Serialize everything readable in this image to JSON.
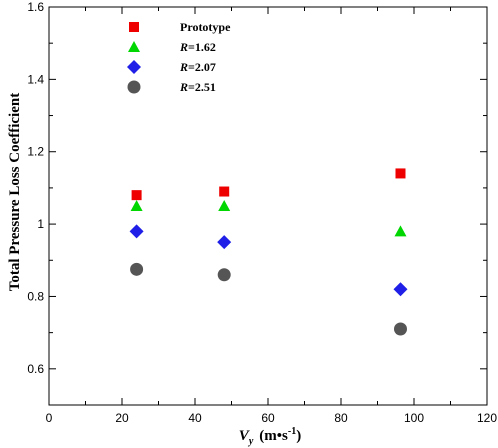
{
  "chart_data": {
    "type": "scatter",
    "title": "",
    "xlabel": {
      "symbol": "V",
      "subscript": "y",
      "units": "(m•s",
      "units_exp": "-1",
      "units_close": ")"
    },
    "ylabel": "Total Pressure Loss Coefficient",
    "xlim": [
      0,
      120
    ],
    "ylim": [
      0.5,
      1.6
    ],
    "xticks": [
      0,
      20,
      40,
      60,
      80,
      100,
      120
    ],
    "yticks": [
      0.6,
      0.8,
      1,
      1.2,
      1.4,
      1.6
    ],
    "xtick_labels": [
      "0",
      "20",
      "40",
      "60",
      "80",
      "100",
      "120"
    ],
    "ytick_labels": [
      "0.6",
      "0.8",
      "1",
      "1.2",
      "1.4",
      "1.6"
    ],
    "grid": false,
    "legend_position": "top-left",
    "series": [
      {
        "name": "Prototype",
        "name_var": "",
        "name_value": "Prototype",
        "marker": "square",
        "color": "#ee0000",
        "x": [
          24,
          48,
          96.3
        ],
        "y": [
          1.08,
          1.09,
          1.14
        ]
      },
      {
        "name": "R=1.62",
        "name_var": "R",
        "name_value": "=1.62",
        "marker": "triangle",
        "color": "#00d600",
        "x": [
          24,
          48,
          96.3
        ],
        "y": [
          1.05,
          1.05,
          0.98
        ]
      },
      {
        "name": "R=2.07",
        "name_var": "R",
        "name_value": "=2.07",
        "marker": "diamond",
        "color": "#1f1fe8",
        "x": [
          24,
          48,
          96.3
        ],
        "y": [
          0.98,
          0.95,
          0.82
        ]
      },
      {
        "name": "R=2.51",
        "name_var": "R",
        "name_value": "=2.51",
        "marker": "circle",
        "color": "#555555",
        "x": [
          24,
          48,
          96.3
        ],
        "y": [
          0.875,
          0.86,
          0.71
        ]
      }
    ]
  }
}
